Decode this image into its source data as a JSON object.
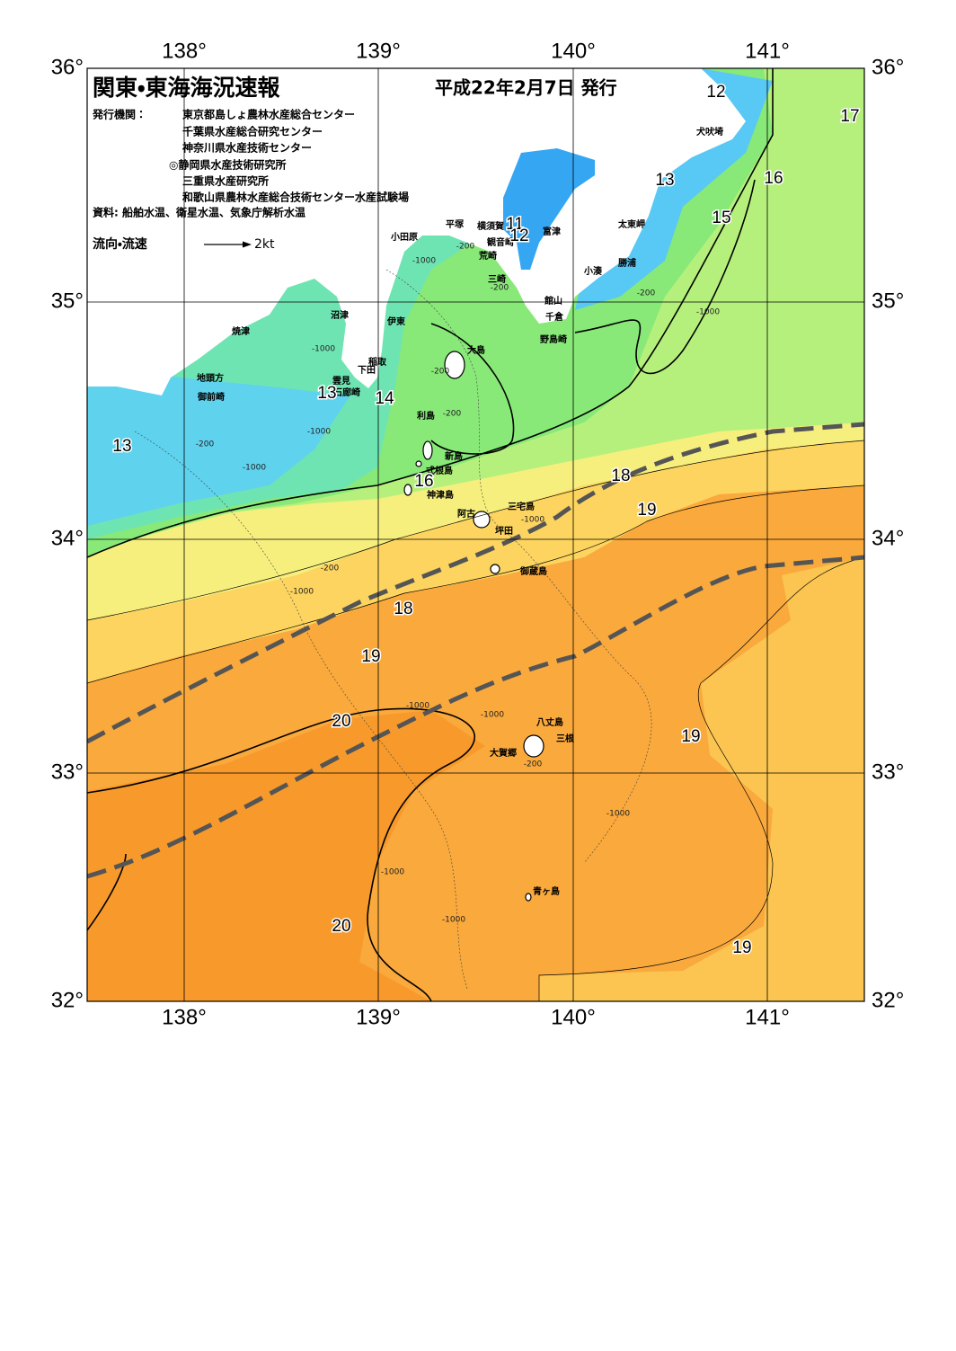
{
  "header": {
    "title": "関東・東海海況速報",
    "date": "平成22年2月7日 発行"
  },
  "issuers": {
    "label": "発行機関：",
    "organizations": [
      "東京都島しょ農林水産総合センター",
      "千葉県水産総合研究センター",
      "神奈川県水産技術センター",
      "◎静岡県水産技術研究所",
      "三重県水産研究所",
      "和歌山県農林水産総合技術センター水産試験場"
    ]
  },
  "source": "資料: 船舶水温、衛星水温、気象庁解析水温",
  "legend": {
    "label": "流向・流速",
    "scale": "2kt"
  },
  "axes": {
    "longitudes": [
      "138°",
      "139°",
      "140°",
      "141°"
    ],
    "latitudes": [
      "36°",
      "35°",
      "34°",
      "33°",
      "32°"
    ]
  },
  "places": [
    "犬吠埼",
    "太東岬",
    "勝浦",
    "小湊",
    "富津",
    "館山",
    "千倉",
    "野島崎",
    "横須賀",
    "観音崎",
    "荒崎",
    "三崎",
    "平塚",
    "小田原",
    "伊東",
    "沼津",
    "稲取",
    "下田",
    "雲見",
    "石廊崎",
    "焼津",
    "地頭方",
    "御前崎",
    "大島",
    "利島",
    "新島",
    "式根島",
    "神津島",
    "三宅島",
    "阿古",
    "坪田",
    "御蔵島",
    "八丈島",
    "三根",
    "大賀郷",
    "青ヶ島"
  ],
  "isotherm_labels": [
    12,
    17,
    13,
    16,
    15,
    11,
    12,
    13,
    14,
    13,
    16,
    18,
    19,
    18,
    19,
    20,
    19,
    20,
    19
  ],
  "depth_labels": [
    "-200",
    "-1000",
    "-200",
    "-200",
    "-1000",
    "-1000",
    "-200",
    "-200",
    "-1000",
    "-200",
    "-1000",
    "-1000",
    "-200",
    "-1000",
    "-1000",
    "-1000",
    "-200",
    "-1000",
    "-1000",
    "-1000"
  ]
}
